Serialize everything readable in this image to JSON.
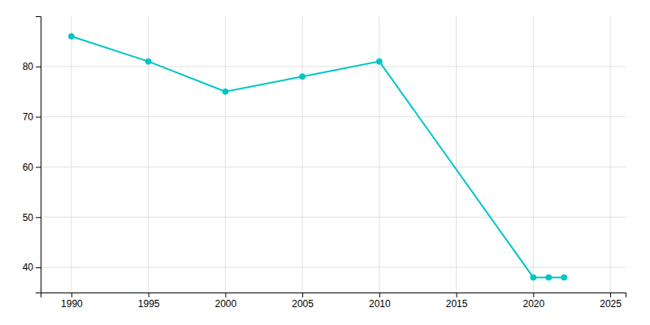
{
  "chart_data": {
    "type": "line",
    "x": [
      1990,
      1995,
      2000,
      2005,
      2010,
      2020,
      2021,
      2022
    ],
    "values": [
      86,
      81,
      75,
      78,
      81,
      38,
      38,
      38
    ],
    "color": "#00C5C5",
    "marker": "circle",
    "xlim": [
      1988,
      2026
    ],
    "ylim": [
      35,
      90
    ],
    "xticks": [
      1990,
      1995,
      2000,
      2005,
      2010,
      2015,
      2020,
      2025
    ],
    "yticks": [
      40,
      50,
      60,
      70,
      80
    ],
    "grid": true
  }
}
